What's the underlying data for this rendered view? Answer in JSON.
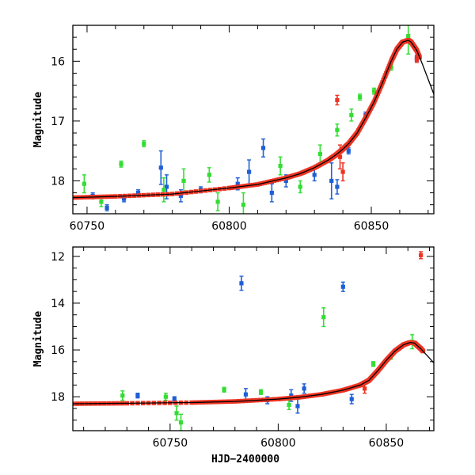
{
  "colors": {
    "blue": "#1f5fd6",
    "green": "#33dd33",
    "red": "#ee3322",
    "model": "#000000"
  },
  "chart_data": [
    {
      "type": "scatter",
      "ylabel": "Magnitude",
      "xlabel": "",
      "xlim": [
        60745,
        60872
      ],
      "ylim": [
        18.55,
        15.4
      ],
      "y_inverted": true,
      "xticks": [
        60750,
        60800,
        60850
      ],
      "xtick_labels": [
        "60750",
        "60800",
        "60850"
      ],
      "yticks": [
        16,
        17,
        18
      ],
      "ytick_labels": [
        "16",
        "17",
        "18"
      ],
      "model_curve": {
        "x": [
          60745,
          60760,
          60780,
          60800,
          60810,
          60820,
          60825,
          60830,
          60835,
          60838,
          60840,
          60842,
          60845,
          60848,
          60851,
          60854,
          60857,
          60859,
          60861,
          60863,
          60864,
          60866,
          60868,
          60870,
          60872
        ],
        "y": [
          18.28,
          18.26,
          18.22,
          18.12,
          18.06,
          17.95,
          17.88,
          17.78,
          17.65,
          17.55,
          17.47,
          17.38,
          17.2,
          16.95,
          16.68,
          16.35,
          16.0,
          15.8,
          15.68,
          15.65,
          15.68,
          15.82,
          16.05,
          16.3,
          16.55
        ]
      },
      "series": [
        {
          "color": "blue",
          "points": [
            {
              "x": 60752,
              "y": 18.25,
              "e": 0.05
            },
            {
              "x": 60757,
              "y": 18.45,
              "e": 0.05
            },
            {
              "x": 60763,
              "y": 18.3,
              "e": 0.05
            },
            {
              "x": 60768,
              "y": 18.2,
              "e": 0.05
            },
            {
              "x": 60776,
              "y": 17.78,
              "e": 0.28
            },
            {
              "x": 60778,
              "y": 18.1,
              "e": 0.2
            },
            {
              "x": 60783,
              "y": 18.25,
              "e": 0.1
            },
            {
              "x": 60790,
              "y": 18.15,
              "e": 0.05
            },
            {
              "x": 60803,
              "y": 18.05,
              "e": 0.1
            },
            {
              "x": 60807,
              "y": 17.85,
              "e": 0.2
            },
            {
              "x": 60812,
              "y": 17.45,
              "e": 0.15
            },
            {
              "x": 60815,
              "y": 18.2,
              "e": 0.15
            },
            {
              "x": 60820,
              "y": 18.0,
              "e": 0.1
            },
            {
              "x": 60830,
              "y": 17.9,
              "e": 0.1
            },
            {
              "x": 60836,
              "y": 18.0,
              "e": 0.3
            },
            {
              "x": 60838,
              "y": 18.1,
              "e": 0.12
            },
            {
              "x": 60842,
              "y": 17.5,
              "e": 0.05
            },
            {
              "x": 60848,
              "y": 16.9,
              "e": 0.05
            },
            {
              "x": 60866,
              "y": 15.95,
              "e": 0.05
            }
          ]
        },
        {
          "color": "green",
          "points": [
            {
              "x": 60749,
              "y": 18.05,
              "e": 0.15
            },
            {
              "x": 60755,
              "y": 18.35,
              "e": 0.08
            },
            {
              "x": 60762,
              "y": 17.72,
              "e": 0.05
            },
            {
              "x": 60770,
              "y": 17.38,
              "e": 0.05
            },
            {
              "x": 60777,
              "y": 18.15,
              "e": 0.2
            },
            {
              "x": 60784,
              "y": 18.0,
              "e": 0.2
            },
            {
              "x": 60793,
              "y": 17.9,
              "e": 0.12
            },
            {
              "x": 60796,
              "y": 18.35,
              "e": 0.15
            },
            {
              "x": 60805,
              "y": 18.4,
              "e": 0.2
            },
            {
              "x": 60818,
              "y": 17.75,
              "e": 0.15
            },
            {
              "x": 60825,
              "y": 18.1,
              "e": 0.1
            },
            {
              "x": 60832,
              "y": 17.55,
              "e": 0.15
            },
            {
              "x": 60838,
              "y": 17.15,
              "e": 0.1
            },
            {
              "x": 60843,
              "y": 16.9,
              "e": 0.1
            },
            {
              "x": 60846,
              "y": 16.6,
              "e": 0.05
            },
            {
              "x": 60851,
              "y": 16.5,
              "e": 0.05
            },
            {
              "x": 60857,
              "y": 16.1,
              "e": 0.05
            },
            {
              "x": 60863,
              "y": 15.58,
              "e": 0.3
            }
          ]
        },
        {
          "color": "red",
          "points": [
            {
              "x": 60838,
              "y": 16.65,
              "e": 0.08
            },
            {
              "x": 60839,
              "y": 17.6,
              "e": 0.2
            },
            {
              "x": 60840,
              "y": 17.85,
              "e": 0.15
            },
            {
              "x": 60866,
              "y": 15.97,
              "e": 0.05
            }
          ]
        }
      ]
    },
    {
      "type": "scatter",
      "ylabel": "Magnitude",
      "xlabel": "HJD−2400000",
      "xlim": [
        60705,
        60872
      ],
      "ylim": [
        19.45,
        11.6
      ],
      "y_inverted": true,
      "xticks": [
        60750,
        60800,
        60850
      ],
      "xtick_labels": [
        "60750",
        "60800",
        "60850"
      ],
      "yticks": [
        12,
        14,
        16,
        18
      ],
      "ytick_labels": [
        "12",
        "14",
        "16",
        "18"
      ],
      "model_curve": {
        "x": [
          60705,
          60730,
          60760,
          60780,
          60800,
          60810,
          60820,
          60830,
          60838,
          60842,
          60846,
          60850,
          60854,
          60858,
          60861,
          60863,
          60866,
          60869,
          60872
        ],
        "y": [
          18.3,
          18.28,
          18.25,
          18.2,
          18.1,
          18.02,
          17.9,
          17.72,
          17.5,
          17.3,
          16.9,
          16.45,
          16.05,
          15.78,
          15.68,
          15.7,
          15.95,
          16.25,
          16.55
        ]
      },
      "series": [
        {
          "color": "blue",
          "points": [
            {
              "x": 60735,
              "y": 17.95,
              "e": 0.1
            },
            {
              "x": 60752,
              "y": 18.1,
              "e": 0.1
            },
            {
              "x": 60783,
              "y": 13.15,
              "e": 0.3
            },
            {
              "x": 60785,
              "y": 17.9,
              "e": 0.25
            },
            {
              "x": 60795,
              "y": 18.15,
              "e": 0.15
            },
            {
              "x": 60806,
              "y": 17.95,
              "e": 0.25
            },
            {
              "x": 60809,
              "y": 18.4,
              "e": 0.3
            },
            {
              "x": 60812,
              "y": 17.65,
              "e": 0.2
            },
            {
              "x": 60830,
              "y": 13.3,
              "e": 0.2
            },
            {
              "x": 60834,
              "y": 18.1,
              "e": 0.2
            },
            {
              "x": 60866,
              "y": 15.93,
              "e": 0.05
            }
          ]
        },
        {
          "color": "green",
          "points": [
            {
              "x": 60728,
              "y": 17.95,
              "e": 0.2
            },
            {
              "x": 60748,
              "y": 18.0,
              "e": 0.15
            },
            {
              "x": 60753,
              "y": 18.7,
              "e": 0.3
            },
            {
              "x": 60755,
              "y": 19.1,
              "e": 0.35
            },
            {
              "x": 60775,
              "y": 17.7,
              "e": 0.1
            },
            {
              "x": 60792,
              "y": 17.8,
              "e": 0.1
            },
            {
              "x": 60805,
              "y": 18.35,
              "e": 0.2
            },
            {
              "x": 60821,
              "y": 14.6,
              "e": 0.4
            },
            {
              "x": 60844,
              "y": 16.6,
              "e": 0.1
            },
            {
              "x": 60852,
              "y": 16.3,
              "e": 0.1
            },
            {
              "x": 60862,
              "y": 15.65,
              "e": 0.3
            }
          ]
        },
        {
          "color": "red",
          "points": [
            {
              "x": 60840,
              "y": 17.65,
              "e": 0.2
            },
            {
              "x": 60866,
              "y": 11.95,
              "e": 0.15
            }
          ]
        }
      ]
    }
  ]
}
